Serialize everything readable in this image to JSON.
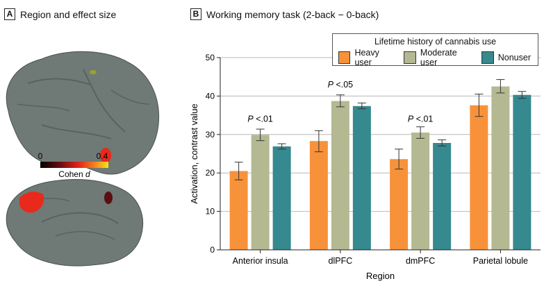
{
  "panelA": {
    "letter": "A",
    "title": "Region and effect size",
    "colorbar": {
      "min": "0",
      "max": "0.4",
      "label": "Cohen",
      "label_italic": "d"
    }
  },
  "panelB": {
    "letter": "B",
    "title": "Working memory task (2-back − 0-back)"
  },
  "legend": {
    "title": "Lifetime history of cannabis use",
    "items": [
      {
        "label": "Heavy user",
        "color": "#f7923a"
      },
      {
        "label": "Moderate user",
        "color": "#b5b992"
      },
      {
        "label": "Nonuser",
        "color": "#36898f"
      }
    ]
  },
  "chart_data": {
    "type": "bar",
    "title": "Working memory task (2-back − 0-back)",
    "xlabel": "Region",
    "ylabel": "Activation, contrast value",
    "ylim": [
      0,
      50
    ],
    "yticks": [
      0,
      10,
      20,
      30,
      40,
      50
    ],
    "grid": true,
    "categories": [
      "Anterior insula",
      "dlPFC",
      "dmPFC",
      "Parietal lobule"
    ],
    "series": [
      {
        "name": "Heavy user",
        "color": "#f7923a",
        "values": [
          20.5,
          28.3,
          23.6,
          37.6
        ],
        "err_low": [
          18.2,
          25.5,
          21.0,
          34.7
        ],
        "err_high": [
          22.8,
          31.0,
          26.2,
          40.5
        ]
      },
      {
        "name": "Moderate user",
        "color": "#b5b992",
        "values": [
          29.9,
          38.7,
          30.5,
          42.5
        ],
        "err_low": [
          28.4,
          37.2,
          29.0,
          40.8
        ],
        "err_high": [
          31.4,
          40.3,
          32.0,
          44.3
        ]
      },
      {
        "name": "Nonuser",
        "color": "#36898f",
        "values": [
          26.9,
          37.4,
          27.8,
          40.3
        ],
        "err_low": [
          26.2,
          36.7,
          27.0,
          39.4
        ],
        "err_high": [
          27.6,
          38.2,
          28.6,
          41.2
        ]
      }
    ],
    "annotations": [
      {
        "category_index": 0,
        "italic": "P",
        "text": " <.01",
        "y": 34
      },
      {
        "category_index": 1,
        "italic": "P",
        "text": " <.05",
        "y": 43
      },
      {
        "category_index": 2,
        "italic": "P",
        "text": " <.01",
        "y": 34
      }
    ]
  }
}
